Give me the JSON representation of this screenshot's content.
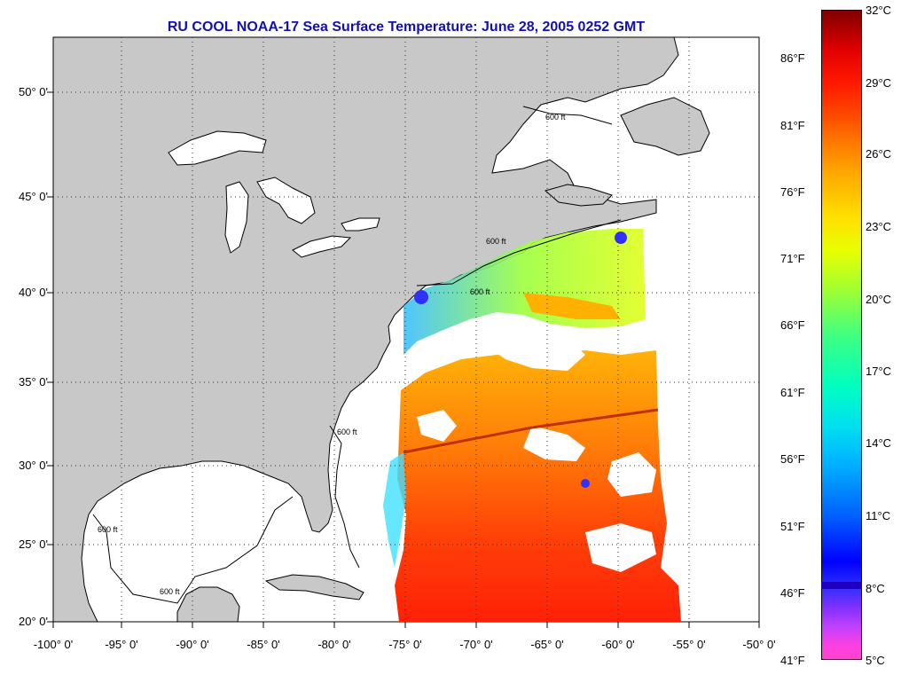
{
  "title": "RU COOL  NOAA-17  Sea Surface Temperature:  June 28, 2005 0252 GMT",
  "map": {
    "lon_range": [
      -100,
      -50
    ],
    "lat_range": [
      20,
      52.5
    ],
    "grid": true,
    "land_color": "#c8c8c8",
    "cloud_color": "#ffffff",
    "contour_label": "600 ft"
  },
  "axes": {
    "lon_ticks": [
      "-100° 0'",
      "-95° 0'",
      "-90° 0'",
      "-85° 0'",
      "-80° 0'",
      "-75° 0'",
      "-70° 0'",
      "-65° 0'",
      "-60° 0'",
      "-55° 0'",
      "-50° 0'"
    ],
    "lat_ticks": [
      "50° 0'",
      "45° 0'",
      "40° 0'",
      "35° 0'",
      "30° 0'",
      "25° 0'",
      "20° 0'"
    ]
  },
  "colorbar": {
    "celsius_labels": [
      "32°C",
      "29°C",
      "26°C",
      "23°C",
      "20°C",
      "17°C",
      "14°C",
      "11°C",
      "8°C",
      "5°C"
    ],
    "fahrenheit_labels": [
      "86°F",
      "81°F",
      "76°F",
      "71°F",
      "66°F",
      "61°F",
      "56°F",
      "51°F",
      "46°F",
      "41°F"
    ]
  }
}
